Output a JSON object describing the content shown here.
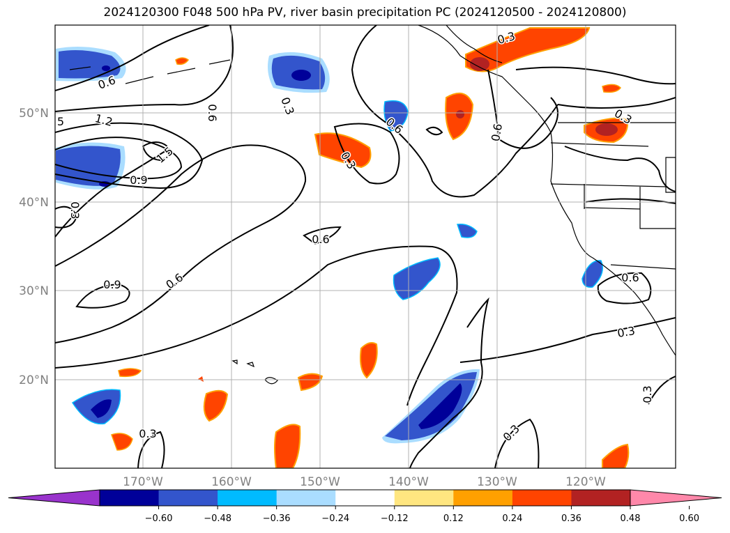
{
  "title": "2024120300 F048 500 hPa PV, river basin precipitation PC (2024120500 - 2024120800)",
  "map": {
    "lat_labels": [
      "50°N",
      "40°N",
      "30°N",
      "20°N"
    ],
    "lon_labels": [
      "170°W",
      "160°W",
      "150°W",
      "140°W",
      "130°W",
      "120°W"
    ]
  },
  "contour_labels": [
    {
      "text": "0.6",
      "rot": -20
    },
    {
      "text": "1.2",
      "rot": 15
    },
    {
      "text": "5",
      "rot": 0
    },
    {
      "text": "1.5",
      "rot": -40
    },
    {
      "text": "0.9",
      "rot": 0
    },
    {
      "text": "0.3",
      "rot": 90
    },
    {
      "text": "0.3",
      "rot": 70
    },
    {
      "text": "0.6",
      "rot": 90
    },
    {
      "text": "0.3",
      "rot": 60
    },
    {
      "text": "0.6",
      "rot": 40
    },
    {
      "text": "0.6",
      "rot": -80
    },
    {
      "text": "0.3",
      "rot": -15
    },
    {
      "text": "0.3",
      "rot": 30
    },
    {
      "text": "0.6",
      "rot": 0
    },
    {
      "text": "0.9",
      "rot": 0
    },
    {
      "text": "0.6",
      "rot": -35
    },
    {
      "text": "0.6",
      "rot": 0
    },
    {
      "text": "0.3",
      "rot": -10
    },
    {
      "text": "0.3",
      "rot": -90
    },
    {
      "text": "0.3",
      "rot": -45
    },
    {
      "text": "0.3",
      "rot": 0
    }
  ],
  "colorbar": {
    "colors": [
      "#9933cc",
      "#000099",
      "#3355cc",
      "#00bbff",
      "#aaddff",
      "#ffffff",
      "#ffe680",
      "#ffa000",
      "#ff4400",
      "#b22222",
      "#ff88aa"
    ],
    "ticks": [
      "−0.60",
      "−0.48",
      "−0.36",
      "−0.24",
      "−0.12",
      "0.12",
      "0.24",
      "0.36",
      "0.48",
      "0.60"
    ]
  }
}
